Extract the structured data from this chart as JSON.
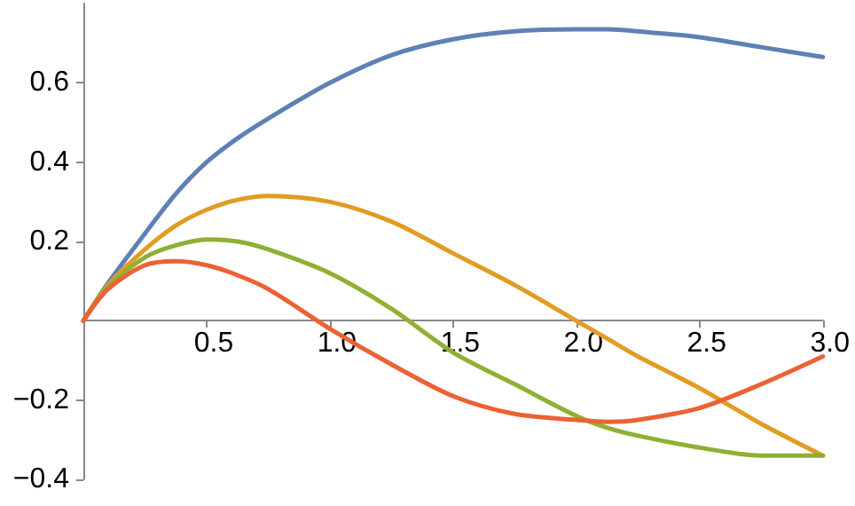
{
  "chart_data": {
    "type": "line",
    "x": [
      0,
      0.1,
      0.25,
      0.375,
      0.5,
      0.625,
      0.75,
      1,
      1.25,
      1.5,
      1.75,
      2,
      2.125,
      2.25,
      2.5,
      2.75,
      3
    ],
    "series": [
      {
        "color": "#5e81b5",
        "values": [
          0,
          0.095,
          0.22,
          0.32,
          0.4,
          0.46,
          0.51,
          0.6,
          0.67,
          0.71,
          0.73,
          0.735,
          0.735,
          0.73,
          0.715,
          0.69,
          0.665
        ]
      },
      {
        "color": "#e19c24",
        "values": [
          0,
          0.09,
          0.18,
          0.24,
          0.28,
          0.305,
          0.315,
          0.3,
          0.25,
          0.17,
          0.09,
          0,
          -0.045,
          -0.09,
          -0.17,
          -0.26,
          -0.34
        ]
      },
      {
        "color": "#8fb032",
        "values": [
          0,
          0.085,
          0.16,
          0.19,
          0.205,
          0.2,
          0.18,
          0.12,
          0.03,
          -0.08,
          -0.16,
          -0.24,
          -0.27,
          -0.29,
          -0.32,
          -0.34,
          -0.34
        ]
      },
      {
        "color": "#eb6235",
        "values": [
          0,
          0.08,
          0.14,
          0.15,
          0.14,
          0.115,
          0.08,
          -0.02,
          -0.11,
          -0.19,
          -0.235,
          -0.25,
          -0.255,
          -0.25,
          -0.22,
          -0.16,
          -0.09
        ]
      }
    ],
    "xlim": [
      0,
      3
    ],
    "ylim": [
      -0.4,
      0.8
    ],
    "xticks": [
      0.5,
      {
        "value": 1,
        "label": "1.0"
      },
      1.5,
      {
        "value": 2,
        "label": "2.0"
      },
      2.5,
      {
        "value": 3,
        "label": "3.0"
      }
    ],
    "yticks": [
      {
        "value": -0.4,
        "label": "−0.4"
      },
      {
        "value": -0.2,
        "label": "−0.2"
      },
      0.2,
      0.4,
      0.6
    ],
    "grid": false,
    "marker": "none",
    "line_style": "solid"
  }
}
